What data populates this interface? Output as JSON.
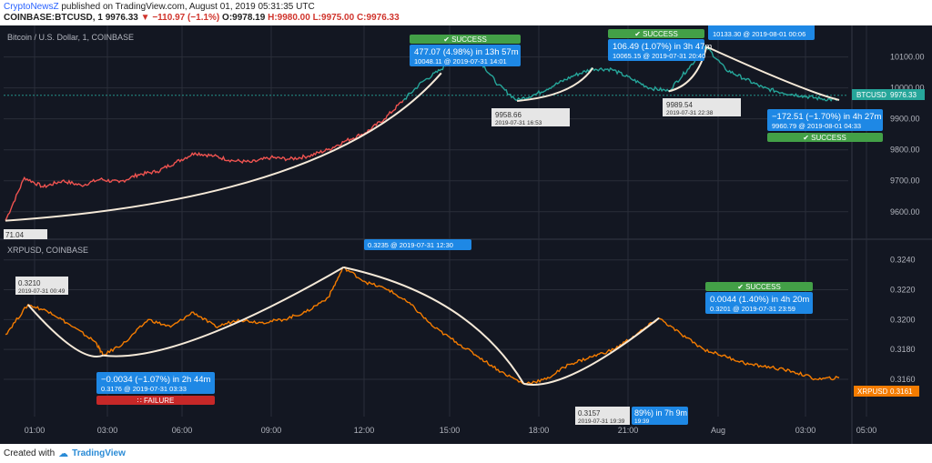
{
  "header": {
    "source": "CryptoNewsZ",
    "published": "published on TradingView.com, August 01, 2019 05:31:35 UTC",
    "symbol": "COINBASE:BTCUSD, 1",
    "last": "9976.33",
    "change": "−110.97 (−1.1%)",
    "open": "O:9978.19",
    "high": "H:9980.00",
    "low": "L:9975.00",
    "close": "C:9976.33"
  },
  "footer": {
    "created": "Created with",
    "brand": "TradingView"
  },
  "colors": {
    "bg": "#131722",
    "grid": "#2a2e39",
    "btc_up": "#26a69a",
    "btc_down": "#ef5350",
    "xrp": "#f57c00",
    "arrow": "#f5e9d8",
    "label_blue": "#1e88e5",
    "success": "#43a047",
    "failure": "#c62828"
  },
  "chart_data": [
    {
      "type": "line",
      "title": "Bitcoin / U.S. Dollar, 1, COINBASE",
      "series_label": "BTCUSD",
      "last_value": "9976.33",
      "x_ticks": [
        "01:00",
        "03:00",
        "06:00",
        "09:00",
        "12:00",
        "15:00",
        "18:00",
        "21:00",
        "Aug",
        "03:00",
        "05:00"
      ],
      "ylim": [
        9520,
        10190
      ],
      "y_ticks": [
        9600,
        9700,
        9800,
        9900,
        10000,
        10100
      ],
      "y_tick_labels": [
        "9600.00",
        "9700.00",
        "9800.00",
        "9900.00",
        "10000.00",
        "10100.00"
      ],
      "points_approx": [
        [
          0,
          9571
        ],
        [
          3,
          9710
        ],
        [
          6,
          9680
        ],
        [
          9,
          9700
        ],
        [
          12,
          9685
        ],
        [
          15,
          9705
        ],
        [
          18,
          9695
        ],
        [
          21,
          9720
        ],
        [
          24,
          9730
        ],
        [
          27,
          9760
        ],
        [
          30,
          9790
        ],
        [
          33,
          9780
        ],
        [
          36,
          9765
        ],
        [
          39,
          9760
        ],
        [
          42,
          9775
        ],
        [
          45,
          9770
        ],
        [
          48,
          9780
        ],
        [
          51,
          9800
        ],
        [
          54,
          9830
        ],
        [
          57,
          9855
        ],
        [
          60,
          9900
        ],
        [
          63,
          9960
        ],
        [
          66,
          10020
        ],
        [
          69,
          10060
        ],
        [
          72,
          10120
        ],
        [
          75,
          10090
        ],
        [
          78,
          10010
        ],
        [
          81,
          9960
        ],
        [
          84,
          9980
        ],
        [
          87,
          10010
        ],
        [
          90,
          10040
        ],
        [
          93,
          10062
        ],
        [
          96,
          10060
        ],
        [
          99,
          10030
        ],
        [
          102,
          10000
        ],
        [
          105,
          9990
        ],
        [
          108,
          10060
        ],
        [
          111,
          10133
        ],
        [
          114,
          10060
        ],
        [
          117,
          10030
        ],
        [
          120,
          10000
        ],
        [
          123,
          9985
        ],
        [
          126,
          9975
        ],
        [
          129,
          9965
        ],
        [
          132,
          9961
        ]
      ],
      "annotations": [
        {
          "value": "477.07 (4.98%) in 13h 57m",
          "detail": "10048.11 @ 2019-07-31 14:01",
          "status": "SUCCESS"
        },
        {
          "value": "106.49 (1.07%) in 3h 47m",
          "detail": "10065.15 @ 2019-07-31 20:40",
          "status": "SUCCESS"
        },
        {
          "value": "10133.30 @ 2019-08-01 00:06"
        },
        {
          "value": "−172.51 (−1.70%) in 4h 27m",
          "detail": "9960.79 @ 2019-08-01 04:33",
          "status": "SUCCESS"
        },
        {
          "value": "9958.66",
          "detail": "2019-07-31 16:53"
        },
        {
          "value": "9989.54",
          "detail": "2019-07-31 22:38"
        },
        {
          "value": "71.04"
        }
      ]
    },
    {
      "type": "line",
      "title": "XRPUSD, COINBASE",
      "series_label": "XRPUSD",
      "last_value": "0.3161",
      "ylim": [
        0.3135,
        0.3252
      ],
      "y_ticks": [
        0.316,
        0.318,
        0.32,
        0.322,
        0.324
      ],
      "y_tick_labels": [
        "0.3160",
        "0.3180",
        "0.3200",
        "0.3220",
        "0.3240"
      ],
      "points_approx": [
        [
          0,
          0.319
        ],
        [
          3,
          0.321
        ],
        [
          6,
          0.3205
        ],
        [
          9,
          0.3195
        ],
        [
          12,
          0.3185
        ],
        [
          13,
          0.3176
        ],
        [
          16,
          0.3185
        ],
        [
          19,
          0.32
        ],
        [
          22,
          0.3195
        ],
        [
          25,
          0.3205
        ],
        [
          28,
          0.3195
        ],
        [
          31,
          0.32
        ],
        [
          34,
          0.3198
        ],
        [
          37,
          0.32
        ],
        [
          40,
          0.3205
        ],
        [
          43,
          0.3215
        ],
        [
          45,
          0.3235
        ],
        [
          48,
          0.3225
        ],
        [
          51,
          0.322
        ],
        [
          54,
          0.321
        ],
        [
          57,
          0.3195
        ],
        [
          60,
          0.3185
        ],
        [
          63,
          0.3175
        ],
        [
          66,
          0.3165
        ],
        [
          69,
          0.3157
        ],
        [
          72,
          0.316
        ],
        [
          75,
          0.317
        ],
        [
          78,
          0.3175
        ],
        [
          81,
          0.318
        ],
        [
          84,
          0.319
        ],
        [
          87,
          0.3201
        ],
        [
          90,
          0.319
        ],
        [
          93,
          0.318
        ],
        [
          96,
          0.3175
        ],
        [
          99,
          0.317
        ],
        [
          102,
          0.3168
        ],
        [
          105,
          0.3165
        ],
        [
          108,
          0.316
        ],
        [
          111,
          0.3161
        ]
      ],
      "annotations": [
        {
          "value": "0.3210",
          "detail": "2019-07-31 00:49"
        },
        {
          "value": "−0.0034 (−1.07%) in 2h 44m",
          "detail": "0.3176 @ 2019-07-31 03:33",
          "status": "FAILURE"
        },
        {
          "value": "0.3235 @ 2019-07-31 12:30"
        },
        {
          "value": "0.3157",
          "detail": "2019-07-31 19:39"
        },
        {
          "value": "89%) in 7h 9m",
          "detail": "19:39"
        },
        {
          "value": "0.0044 (1.40%) in 4h 20m",
          "detail": "0.3201 @ 2019-07-31 23:59",
          "status": "SUCCESS"
        }
      ]
    }
  ]
}
